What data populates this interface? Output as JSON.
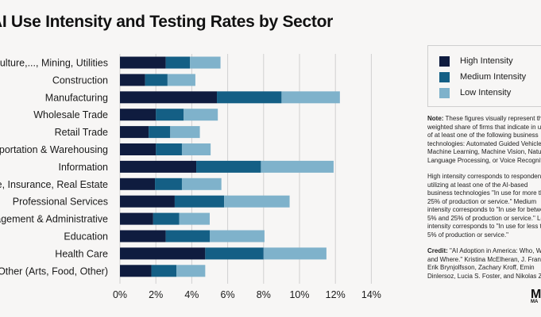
{
  "title": "AI Use Intensity and Testing Rates by Sector",
  "legend": [
    {
      "label": "High Intensity",
      "color": "#0f1c3f"
    },
    {
      "label": "Medium Intensity",
      "color": "#145f85"
    },
    {
      "label": "Low Intensity",
      "color": "#7fb2cb"
    }
  ],
  "notes": {
    "note_label": "Note:",
    "note_text": "These figures visually represent the weighted share of firms that indicate in use of at least one of the following business technologies: Automated Guided Vehicles, Machine Learning, Machine Vision, Natural Language Processing, or Voice Recognition.",
    "intensity_text": "High intensity corresponds to respondents utilizing at least one of the AI-based business technologies \"In use for more than 25% of production or service.\" Medium intensity corresponds to \"In use for between 5% and 25% of production or service.\" Low intensity corresponds to \"In use for less than 5% of production or service.\"",
    "credit_label": "Credit:",
    "credit_text": "\"AI Adoption in America: Who, What, and Where.\" Kristina McElheran, J. Frank Li, Erik Brynjolfsson, Zachary Kroff, Emin Dinlersoz, Lucia S. Foster, and Nikolas Zolas"
  },
  "logo": {
    "mark": "M",
    "sub": "MA"
  },
  "chart_data": {
    "type": "bar",
    "orientation": "horizontal",
    "stacked": true,
    "title": "AI Use Intensity and Testing Rates by Sector",
    "categories": [
      "Agriculture,..., Mining, Utilities",
      "Construction",
      "Manufacturing",
      "Wholesale Trade",
      "Retail Trade",
      "Transportation & Warehousing",
      "Information",
      "Finance, Insurance, Real Estate",
      "Professional Services",
      "Management & Administrative",
      "Education",
      "Health Care",
      "Other (Arts, Food, Other)"
    ],
    "series": [
      {
        "name": "High Intensity",
        "values": [
          2.55,
          1.4,
          5.4,
          2.0,
          1.6,
          2.0,
          4.25,
          1.95,
          3.05,
          1.85,
          2.55,
          4.75,
          1.75
        ]
      },
      {
        "name": "Medium Intensity",
        "values": [
          1.35,
          1.25,
          3.6,
          1.55,
          1.2,
          1.45,
          3.6,
          1.5,
          2.75,
          1.45,
          2.45,
          3.25,
          1.4
        ]
      },
      {
        "name": "Low Intensity",
        "values": [
          1.7,
          1.55,
          3.25,
          1.9,
          1.65,
          1.6,
          4.05,
          2.2,
          3.65,
          1.7,
          3.05,
          3.5,
          1.6
        ]
      }
    ],
    "xlim": [
      0,
      14
    ],
    "xticks": [
      "0%",
      "2%",
      "4%",
      "6%",
      "8%",
      "10%",
      "12%",
      "14%"
    ],
    "grid": true,
    "legend_position": "right"
  }
}
